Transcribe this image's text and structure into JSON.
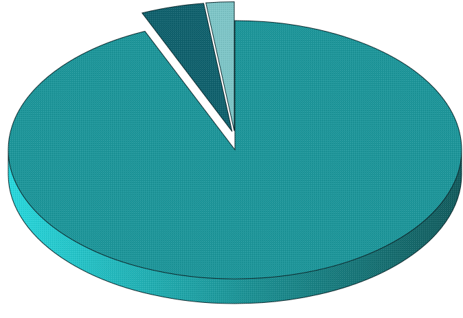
{
  "chart_data": {
    "type": "pie",
    "style": "3d-exploded",
    "title": "",
    "slices": [
      {
        "value": 93.5,
        "color": "#1a9498",
        "exploded": false
      },
      {
        "value": 4.5,
        "color": "#0d5f6b",
        "exploded": true
      },
      {
        "value": 2.0,
        "color": "#7cc4c6",
        "exploded": true
      }
    ],
    "legend": "none",
    "data_labels": "none"
  }
}
